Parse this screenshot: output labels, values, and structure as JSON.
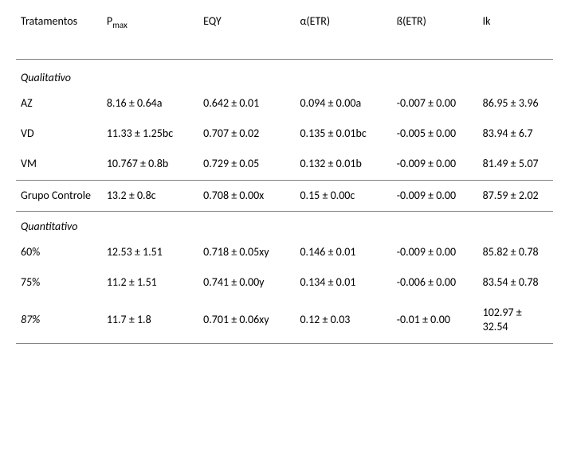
{
  "table": {
    "headers": {
      "tratamentos": "Tratamentos",
      "pmax_label": "P",
      "pmax_sub": "max",
      "eqy": "EQY",
      "alpha": "α(ETR)",
      "beta": "ß(ETR)",
      "ik": "Ik"
    },
    "sections": {
      "qualitativo": "Qualitativo",
      "quantitativo": "Quantitativo"
    },
    "rows": {
      "az": {
        "label": "AZ",
        "pmax": "8.16 ± 0.64a",
        "eqy": "0.642 ± 0.01",
        "alpha": "0.094 ± 0.00a",
        "beta": "-0.007 ± 0.00",
        "ik": "86.95  ±  3.96"
      },
      "vd": {
        "label": "VD",
        "pmax": "11.33 ± 1.25bc",
        "eqy": "0.707 ± 0.02",
        "alpha": "0.135 ± 0.01bc",
        "beta": "-0.005 ± 0.00",
        "ik": "83.94  ±  6.7"
      },
      "vm": {
        "label": "VM",
        "pmax": "10.767 ± 0.8b",
        "eqy": "0.729 ± 0.05",
        "alpha": "0.132 ± 0.01b",
        "beta": "-0.009 ± 0.00",
        "ik": "81.49  ±  5.07"
      },
      "ctrl": {
        "label": "Grupo Controle",
        "pmax": "13.2 ± 0.8c",
        "eqy": "0.708 ± 0.00x",
        "alpha": "0.15 ± 0.00c",
        "beta": "-0.009 ± 0.00",
        "ik": "87.59  ±  2.02"
      },
      "p60": {
        "label": "60%",
        "pmax": "12.53 ± 1.51",
        "eqy": "0.718 ± 0.05xy",
        "alpha": "0.146 ± 0.01",
        "beta": "-0.009 ± 0.00",
        "ik": "85.82  ±  0.78"
      },
      "p75": {
        "label": "75%",
        "pmax": "11.2 ± 1.51",
        "eqy": "0.741 ± 0.00y",
        "alpha": "0.134 ± 0.01",
        "beta": "-0.006 ± 0.00",
        "ik": "83.54  ±  0.78"
      },
      "p87": {
        "label": "87%",
        "pmax": "11.7 ± 1.8",
        "eqy": "0.701 ± 0.06xy",
        "alpha": "0.12 ± 0.03",
        "beta": "-0.01 ± 0.00",
        "ik": "102.97  ±  32.54"
      }
    },
    "colors": {
      "rule": "#7f7f7f",
      "text": "#000000",
      "background": "#ffffff"
    },
    "font_sizes_pt": {
      "header": 11,
      "body": 11,
      "subscript": 8
    }
  }
}
